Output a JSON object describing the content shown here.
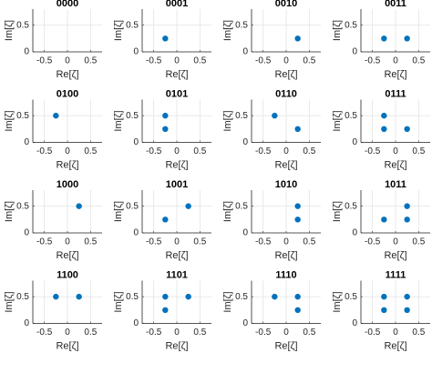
{
  "chart_data": [
    {
      "type": "scatter",
      "title": "0000",
      "x": [],
      "values": [],
      "color": "#0072bd",
      "xlabel": "Re[ζ]",
      "ylabel": "Im[ζ]",
      "xlim": [
        -0.75,
        0.75
      ],
      "ylim": [
        0,
        0.8
      ],
      "xticks": [
        -0.5,
        0,
        0.5
      ],
      "yticks": [
        0,
        0.5
      ],
      "grid": true
    },
    {
      "type": "scatter",
      "title": "0001",
      "x": [
        -0.25
      ],
      "values": [
        0.25
      ],
      "color": "#0072bd",
      "xlabel": "Re[ζ]",
      "ylabel": "Im[ζ]",
      "xlim": [
        -0.75,
        0.75
      ],
      "ylim": [
        0,
        0.8
      ],
      "xticks": [
        -0.5,
        0,
        0.5
      ],
      "yticks": [
        0,
        0.5
      ],
      "grid": true
    },
    {
      "type": "scatter",
      "title": "0010",
      "x": [
        0.25
      ],
      "values": [
        0.25
      ],
      "color": "#0072bd",
      "xlabel": "Re[ζ]",
      "ylabel": "Im[ζ]",
      "xlim": [
        -0.75,
        0.75
      ],
      "ylim": [
        0,
        0.8
      ],
      "xticks": [
        -0.5,
        0,
        0.5
      ],
      "yticks": [
        0,
        0.5
      ],
      "grid": true
    },
    {
      "type": "scatter",
      "title": "0011",
      "x": [
        -0.25,
        0.25
      ],
      "values": [
        0.25,
        0.25
      ],
      "color": "#0072bd",
      "xlabel": "Re[ζ]",
      "ylabel": "Im[ζ]",
      "xlim": [
        -0.75,
        0.75
      ],
      "ylim": [
        0,
        0.8
      ],
      "xticks": [
        -0.5,
        0,
        0.5
      ],
      "yticks": [
        0,
        0.5
      ],
      "grid": true
    },
    {
      "type": "scatter",
      "title": "0100",
      "x": [
        -0.25
      ],
      "values": [
        0.5
      ],
      "color": "#0072bd",
      "xlabel": "Re[ζ]",
      "ylabel": "Im[ζ]",
      "xlim": [
        -0.75,
        0.75
      ],
      "ylim": [
        0,
        0.8
      ],
      "xticks": [
        -0.5,
        0,
        0.5
      ],
      "yticks": [
        0,
        0.5
      ],
      "grid": true
    },
    {
      "type": "scatter",
      "title": "0101",
      "x": [
        -0.25,
        -0.25
      ],
      "values": [
        0.5,
        0.25
      ],
      "color": "#0072bd",
      "xlabel": "Re[ζ]",
      "ylabel": "Im[ζ]",
      "xlim": [
        -0.75,
        0.75
      ],
      "ylim": [
        0,
        0.8
      ],
      "xticks": [
        -0.5,
        0,
        0.5
      ],
      "yticks": [
        0,
        0.5
      ],
      "grid": true
    },
    {
      "type": "scatter",
      "title": "0110",
      "x": [
        -0.25,
        0.25
      ],
      "values": [
        0.5,
        0.25
      ],
      "color": "#0072bd",
      "xlabel": "Re[ζ]",
      "ylabel": "Im[ζ]",
      "xlim": [
        -0.75,
        0.75
      ],
      "ylim": [
        0,
        0.8
      ],
      "xticks": [
        -0.5,
        0,
        0.5
      ],
      "yticks": [
        0,
        0.5
      ],
      "grid": true
    },
    {
      "type": "scatter",
      "title": "0111",
      "x": [
        -0.25,
        -0.25,
        0.25
      ],
      "values": [
        0.5,
        0.25,
        0.25
      ],
      "color": "#0072bd",
      "xlabel": "Re[ζ]",
      "ylabel": "Im[ζ]",
      "xlim": [
        -0.75,
        0.75
      ],
      "ylim": [
        0,
        0.8
      ],
      "xticks": [
        -0.5,
        0,
        0.5
      ],
      "yticks": [
        0,
        0.5
      ],
      "grid": true
    },
    {
      "type": "scatter",
      "title": "1000",
      "x": [
        0.25
      ],
      "values": [
        0.5
      ],
      "color": "#0072bd",
      "xlabel": "Re[ζ]",
      "ylabel": "Im[ζ]",
      "xlim": [
        -0.75,
        0.75
      ],
      "ylim": [
        0,
        0.8
      ],
      "xticks": [
        -0.5,
        0,
        0.5
      ],
      "yticks": [
        0,
        0.5
      ],
      "grid": true
    },
    {
      "type": "scatter",
      "title": "1001",
      "x": [
        0.25,
        -0.25
      ],
      "values": [
        0.5,
        0.25
      ],
      "color": "#0072bd",
      "xlabel": "Re[ζ]",
      "ylabel": "Im[ζ]",
      "xlim": [
        -0.75,
        0.75
      ],
      "ylim": [
        0,
        0.8
      ],
      "xticks": [
        -0.5,
        0,
        0.5
      ],
      "yticks": [
        0,
        0.5
      ],
      "grid": true
    },
    {
      "type": "scatter",
      "title": "1010",
      "x": [
        0.25,
        0.25
      ],
      "values": [
        0.5,
        0.25
      ],
      "color": "#0072bd",
      "xlabel": "Re[ζ]",
      "ylabel": "Im[ζ]",
      "xlim": [
        -0.75,
        0.75
      ],
      "ylim": [
        0,
        0.8
      ],
      "xticks": [
        -0.5,
        0,
        0.5
      ],
      "yticks": [
        0,
        0.5
      ],
      "grid": true
    },
    {
      "type": "scatter",
      "title": "1011",
      "x": [
        0.25,
        -0.25,
        0.25
      ],
      "values": [
        0.5,
        0.25,
        0.25
      ],
      "color": "#0072bd",
      "xlabel": "Re[ζ]",
      "ylabel": "Im[ζ]",
      "xlim": [
        -0.75,
        0.75
      ],
      "ylim": [
        0,
        0.8
      ],
      "xticks": [
        -0.5,
        0,
        0.5
      ],
      "yticks": [
        0,
        0.5
      ],
      "grid": true
    },
    {
      "type": "scatter",
      "title": "1100",
      "x": [
        -0.25,
        0.25
      ],
      "values": [
        0.5,
        0.5
      ],
      "color": "#0072bd",
      "xlabel": "Re[ζ]",
      "ylabel": "Im[ζ]",
      "xlim": [
        -0.75,
        0.75
      ],
      "ylim": [
        0,
        0.8
      ],
      "xticks": [
        -0.5,
        0,
        0.5
      ],
      "yticks": [
        0,
        0.5
      ],
      "grid": true
    },
    {
      "type": "scatter",
      "title": "1101",
      "x": [
        -0.25,
        0.25,
        -0.25
      ],
      "values": [
        0.5,
        0.5,
        0.25
      ],
      "color": "#0072bd",
      "xlabel": "Re[ζ]",
      "ylabel": "Im[ζ]",
      "xlim": [
        -0.75,
        0.75
      ],
      "ylim": [
        0,
        0.8
      ],
      "xticks": [
        -0.5,
        0,
        0.5
      ],
      "yticks": [
        0,
        0.5
      ],
      "grid": true
    },
    {
      "type": "scatter",
      "title": "1110",
      "x": [
        -0.25,
        0.25,
        0.25
      ],
      "values": [
        0.5,
        0.5,
        0.25
      ],
      "color": "#0072bd",
      "xlabel": "Re[ζ]",
      "ylabel": "Im[ζ]",
      "xlim": [
        -0.75,
        0.75
      ],
      "ylim": [
        0,
        0.8
      ],
      "xticks": [
        -0.5,
        0,
        0.5
      ],
      "yticks": [
        0,
        0.5
      ],
      "grid": true
    },
    {
      "type": "scatter",
      "title": "1111",
      "x": [
        -0.25,
        0.25,
        -0.25,
        0.25
      ],
      "values": [
        0.5,
        0.5,
        0.25,
        0.25
      ],
      "color": "#0072bd",
      "xlabel": "Re[ζ]",
      "ylabel": "Im[ζ]",
      "xlim": [
        -0.75,
        0.75
      ],
      "ylim": [
        0,
        0.8
      ],
      "xticks": [
        -0.5,
        0,
        0.5
      ],
      "yticks": [
        0,
        0.5
      ],
      "grid": true
    }
  ]
}
